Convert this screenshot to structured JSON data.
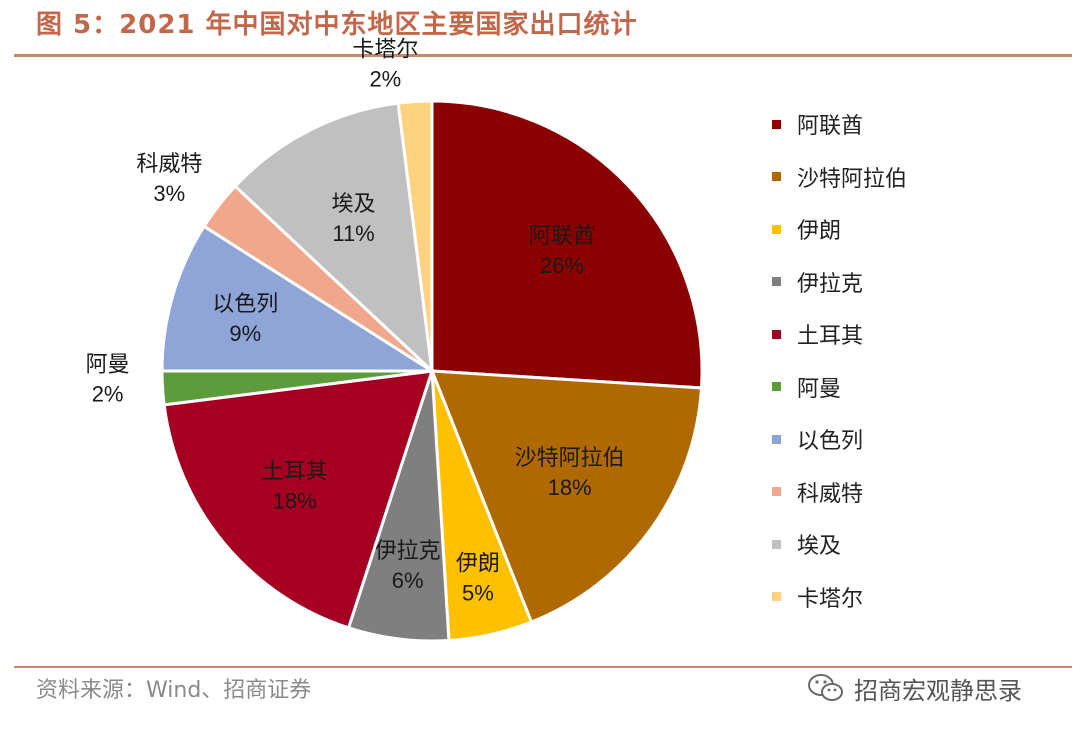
{
  "page": {
    "title": "图 5：2021 年中国对中东地区主要国家出口统计",
    "source": "资料来源：Wind、招商证券",
    "watermark": "招商宏观静思录",
    "watermark_icon": "wechat-icon"
  },
  "chart_data": {
    "type": "pie",
    "title": "",
    "labels": [
      "阿联酋",
      "沙特阿拉伯",
      "伊朗",
      "伊拉克",
      "土耳其",
      "阿曼",
      "以色列",
      "科威特",
      "埃及",
      "卡塔尔"
    ],
    "values": [
      26,
      18,
      5,
      6,
      18,
      2,
      9,
      3,
      11,
      2
    ],
    "value_labels": [
      "26%",
      "18%",
      "5%",
      "6%",
      "18%",
      "2%",
      "9%",
      "3%",
      "11%",
      "2%"
    ],
    "colors": [
      "#8b0000",
      "#b06800",
      "#ffc000",
      "#7f7f7f",
      "#a50021",
      "#5c9c3a",
      "#8fa5d8",
      "#f0a78c",
      "#c0c0c0",
      "#ffd280"
    ],
    "start": "12 o'clock",
    "direction": "clockwise",
    "legend_position": "right"
  }
}
